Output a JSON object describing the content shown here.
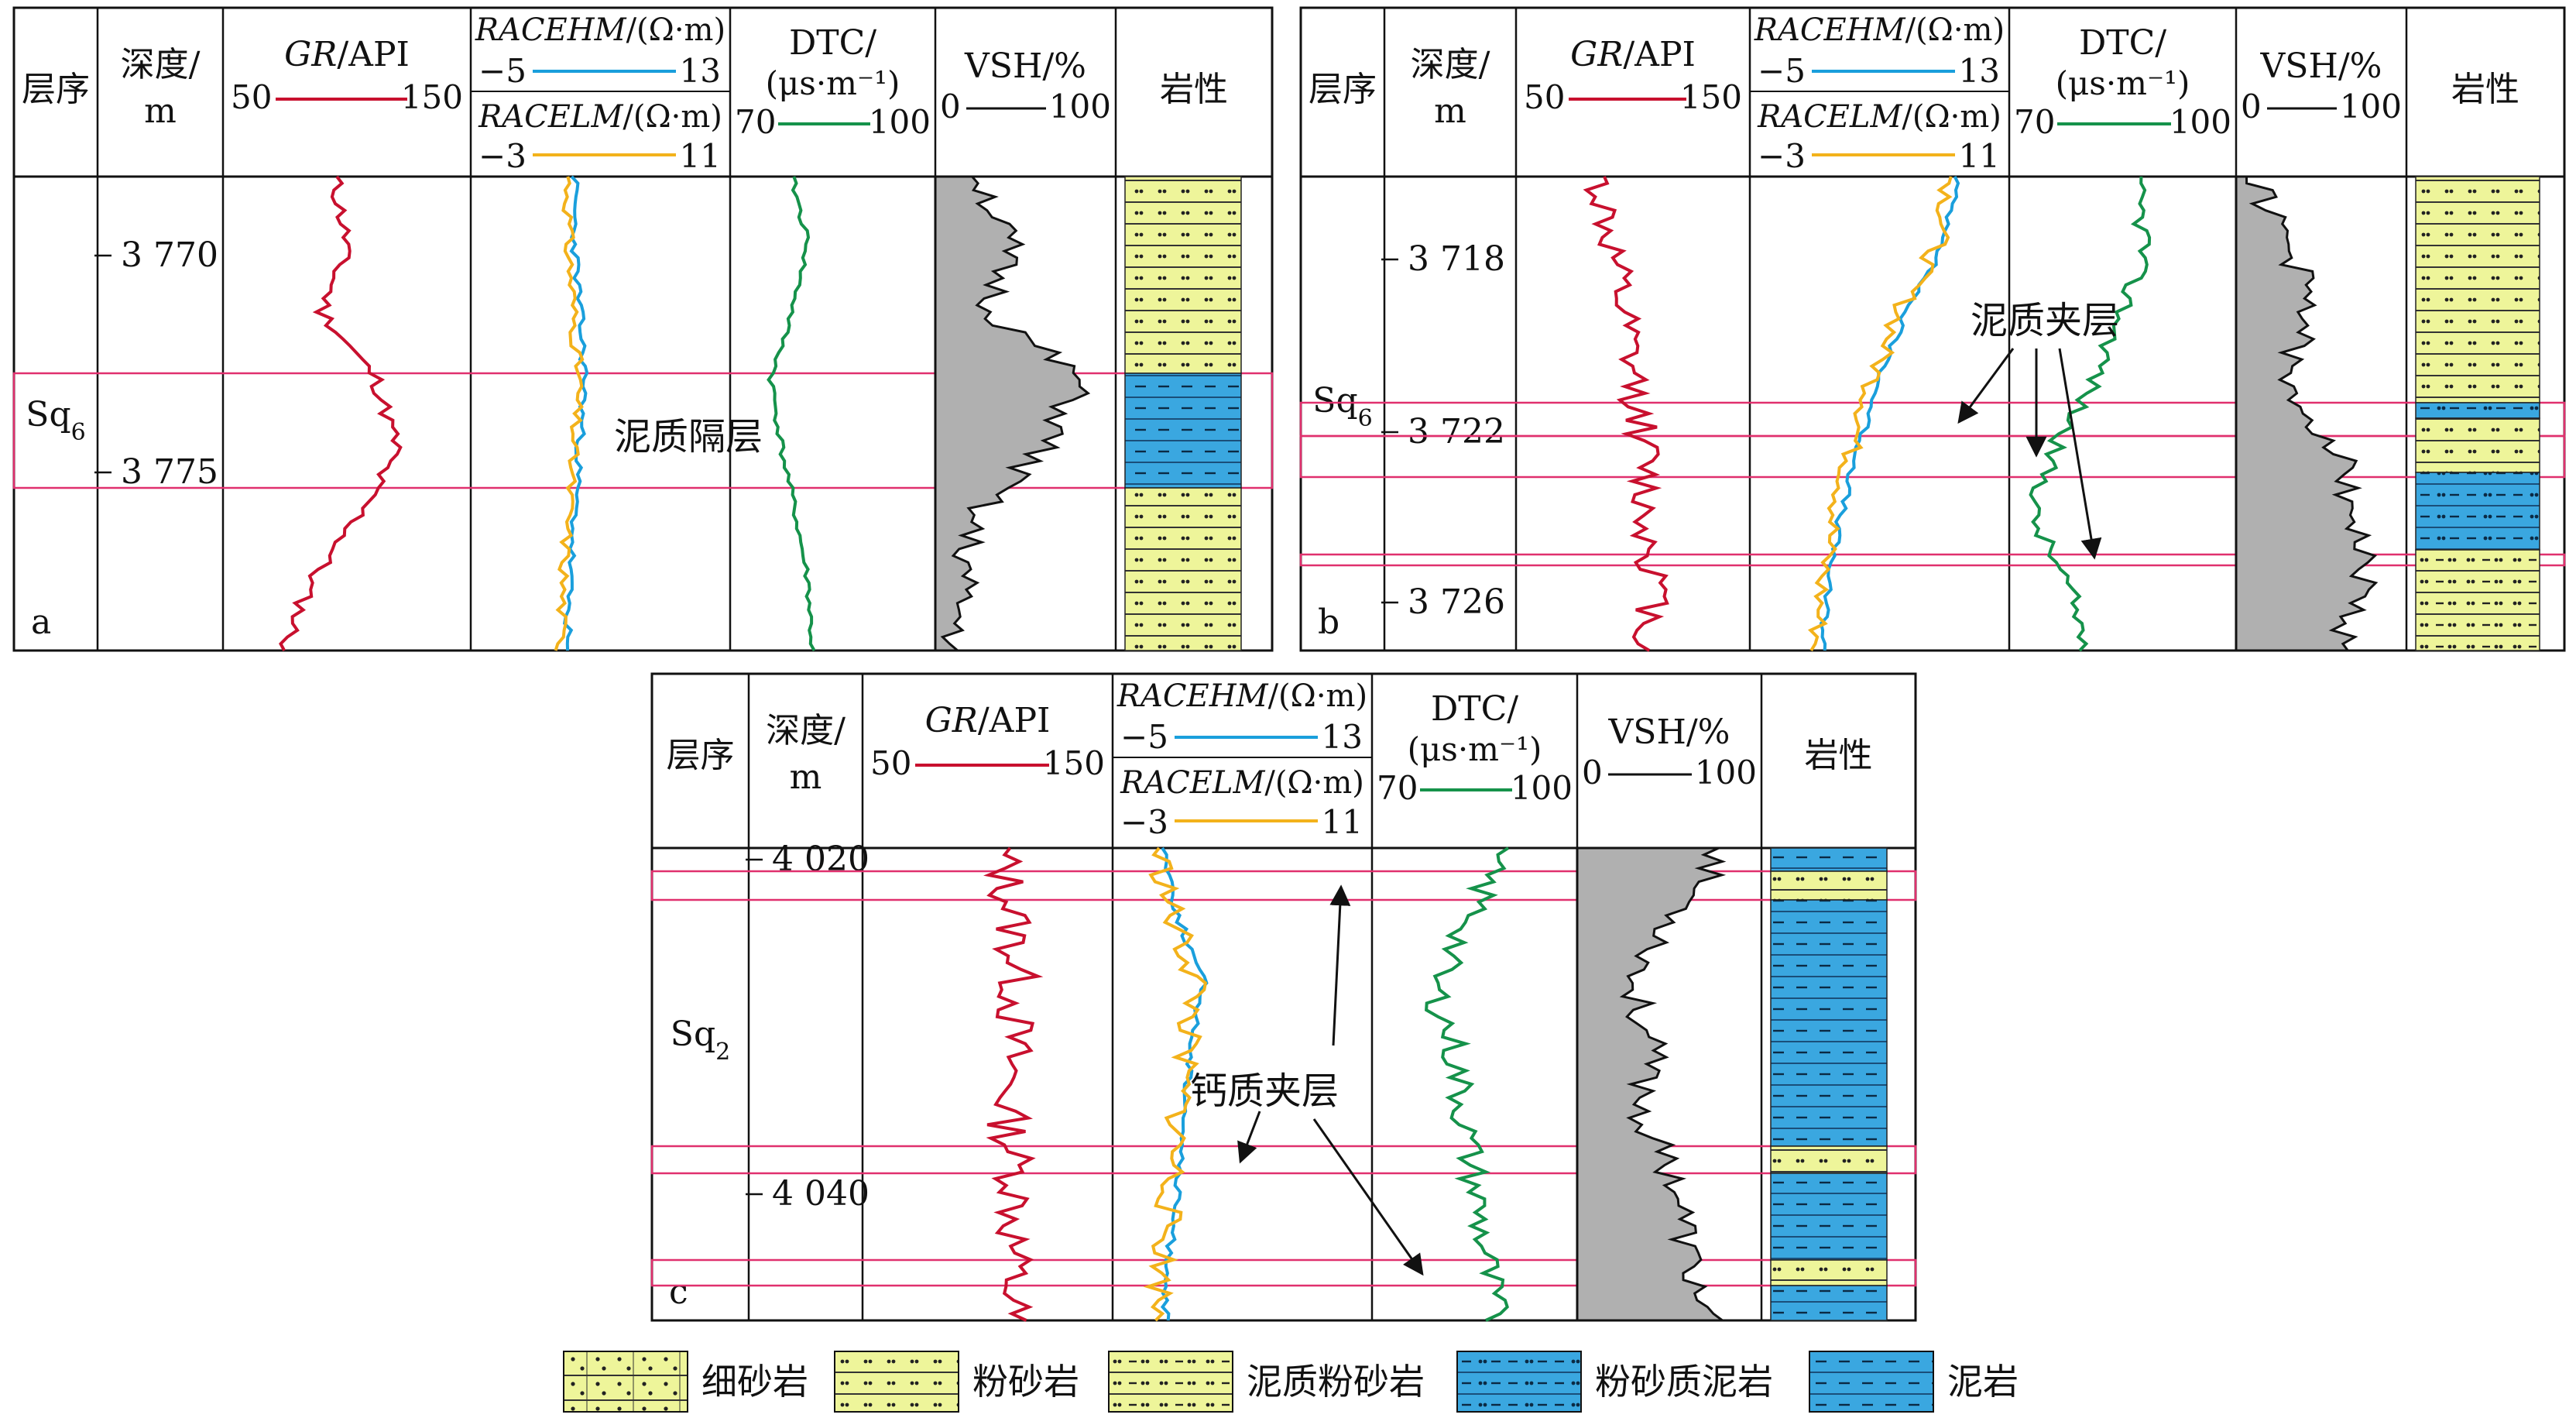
{
  "colors": {
    "gr": "#c8102e",
    "racehm": "#1a9fdc",
    "racelm": "#f3b21b",
    "dtc": "#15924a",
    "vsh_fill": "#b0b0b0",
    "highlight": "#e0306e",
    "sand": "#eef59a",
    "mud": "#3aa7e0"
  },
  "columns": {
    "seq": "层序",
    "depth": "深度/",
    "depth_unit": "m",
    "gr_name": "GR",
    "gr_unit": "/API",
    "gr_min": "50",
    "gr_max": "150",
    "racehm_name": "RACEHM",
    "racehm_unit": "/(Ω·m)",
    "racehm_min": "−5",
    "racehm_max": "13",
    "racelm_name": "RACELM",
    "racelm_unit": "/(Ω·m)",
    "racelm_min": "−3",
    "racelm_max": "11",
    "dtc_name": "DTC/",
    "dtc_unit": "(μs·m⁻¹)",
    "dtc_min": "70",
    "dtc_max": "100",
    "vsh_name": "VSH/%",
    "vsh_min": "0",
    "vsh_max": "100",
    "lith": "岩性"
  },
  "panels": [
    {
      "tag": "a",
      "sequence_base": "Sq",
      "sequence_sub": "6",
      "depth_ticks": [
        "3 770",
        "3 775"
      ],
      "annotations": [
        "泥质隔层"
      ]
    },
    {
      "tag": "b",
      "sequence_base": "Sq",
      "sequence_sub": "6",
      "depth_ticks": [
        "3 718",
        "3 722",
        "3 726"
      ],
      "annotations": [
        "泥质夹层"
      ]
    },
    {
      "tag": "c",
      "sequence_base": "Sq",
      "sequence_sub": "2",
      "depth_ticks": [
        "4 020",
        "4 040"
      ],
      "annotations": [
        "钙质夹层"
      ]
    }
  ],
  "legend": [
    {
      "label": "细砂岩",
      "pattern": "fine-sand"
    },
    {
      "label": "粉砂岩",
      "pattern": "silt"
    },
    {
      "label": "泥质粉砂岩",
      "pattern": "muddy-silt"
    },
    {
      "label": "粉砂质泥岩",
      "pattern": "silty-mud"
    },
    {
      "label": "泥岩",
      "pattern": "mud"
    }
  ]
}
